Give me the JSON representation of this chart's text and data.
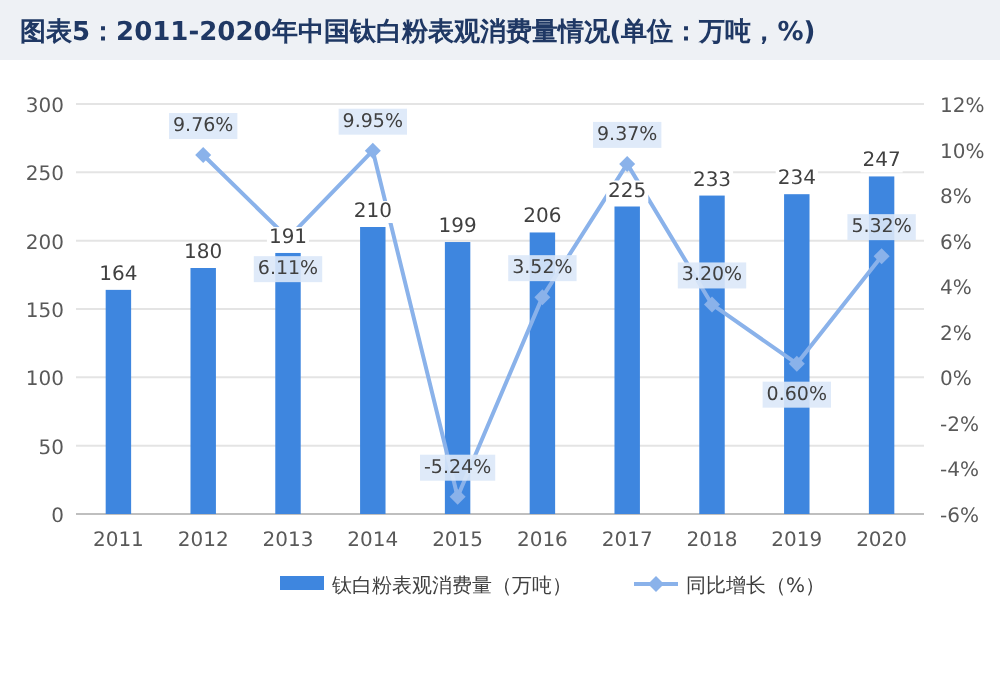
{
  "chart_data": {
    "type": "bar",
    "title": "图表5：2011-2020年中国钛白粉表观消费量情况(单位：万吨，%)",
    "categories": [
      "2011",
      "2012",
      "2013",
      "2014",
      "2015",
      "2016",
      "2017",
      "2018",
      "2019",
      "2020"
    ],
    "series": [
      {
        "name": "钛白粉表观消费量（万吨）",
        "color": "#3e86df",
        "values": [
          164,
          180,
          191,
          210,
          199,
          206,
          225,
          233,
          234,
          247
        ],
        "value_labels": [
          "164",
          "180",
          "191",
          "210",
          "199",
          "206",
          "225",
          "233",
          "234",
          "247"
        ]
      },
      {
        "name": "同比增长（%）",
        "type": "line",
        "axis": "y2",
        "color": "#8ab2ea",
        "marker": "diamond",
        "values": [
          null,
          9.76,
          6.11,
          9.95,
          -5.24,
          3.52,
          9.37,
          3.2,
          0.6,
          5.32
        ],
        "value_labels": [
          null,
          "9.76%",
          "6.11%",
          "9.95%",
          "-5.24%",
          "3.52%",
          "9.37%",
          "3.20%",
          "0.60%",
          "5.32%"
        ]
      }
    ],
    "ylim": [
      0,
      300
    ],
    "yticks": [
      0,
      50,
      100,
      150,
      200,
      250,
      300
    ],
    "y2lim": [
      -6,
      12
    ],
    "y2ticks": [
      {
        "value": -6,
        "label": "-6%"
      },
      {
        "value": -4,
        "label": "-4%"
      },
      {
        "value": -2,
        "label": "-2%"
      },
      {
        "value": 0,
        "label": "0%"
      },
      {
        "value": 2,
        "label": "2%"
      },
      {
        "value": 4,
        "label": "4%"
      },
      {
        "value": 6,
        "label": "6%"
      },
      {
        "value": 8,
        "label": "8%"
      },
      {
        "value": 10,
        "label": "10%"
      },
      {
        "value": 12,
        "label": "12%"
      }
    ],
    "grid": "y",
    "legend": "bottom"
  }
}
